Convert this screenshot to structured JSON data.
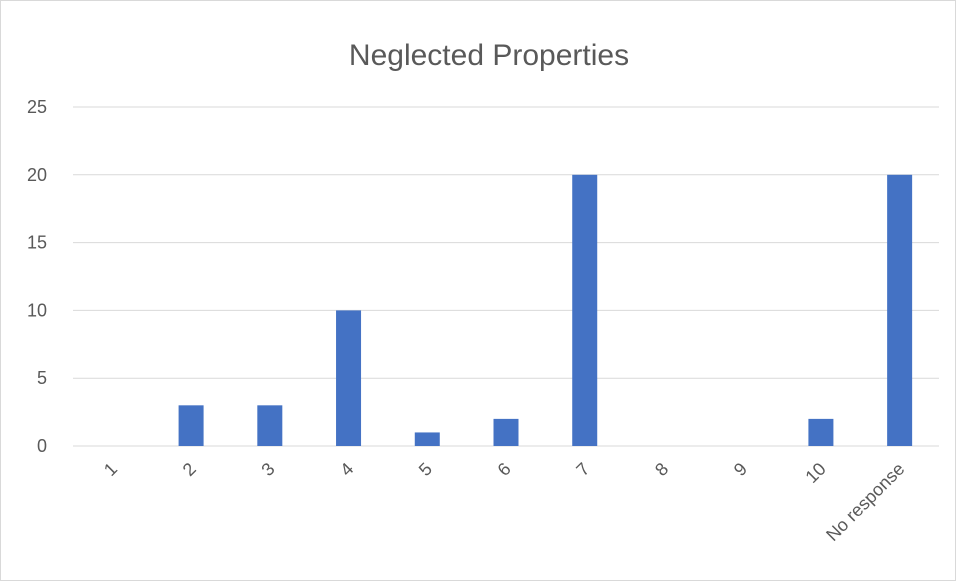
{
  "chart_data": {
    "type": "bar",
    "title": "Neglected Properties",
    "xlabel": "",
    "ylabel": "",
    "categories": [
      "1",
      "2",
      "3",
      "4",
      "5",
      "6",
      "7",
      "8",
      "9",
      "10",
      "No response"
    ],
    "values": [
      0,
      3,
      3,
      10,
      1,
      2,
      20,
      0,
      0,
      2,
      20
    ],
    "ylim": [
      0,
      25
    ],
    "yticks": [
      0,
      5,
      10,
      15,
      20,
      25
    ],
    "grid": true,
    "legend": "none",
    "bar_color": "#4472C4",
    "x_tick_rotation": "diagonal"
  }
}
